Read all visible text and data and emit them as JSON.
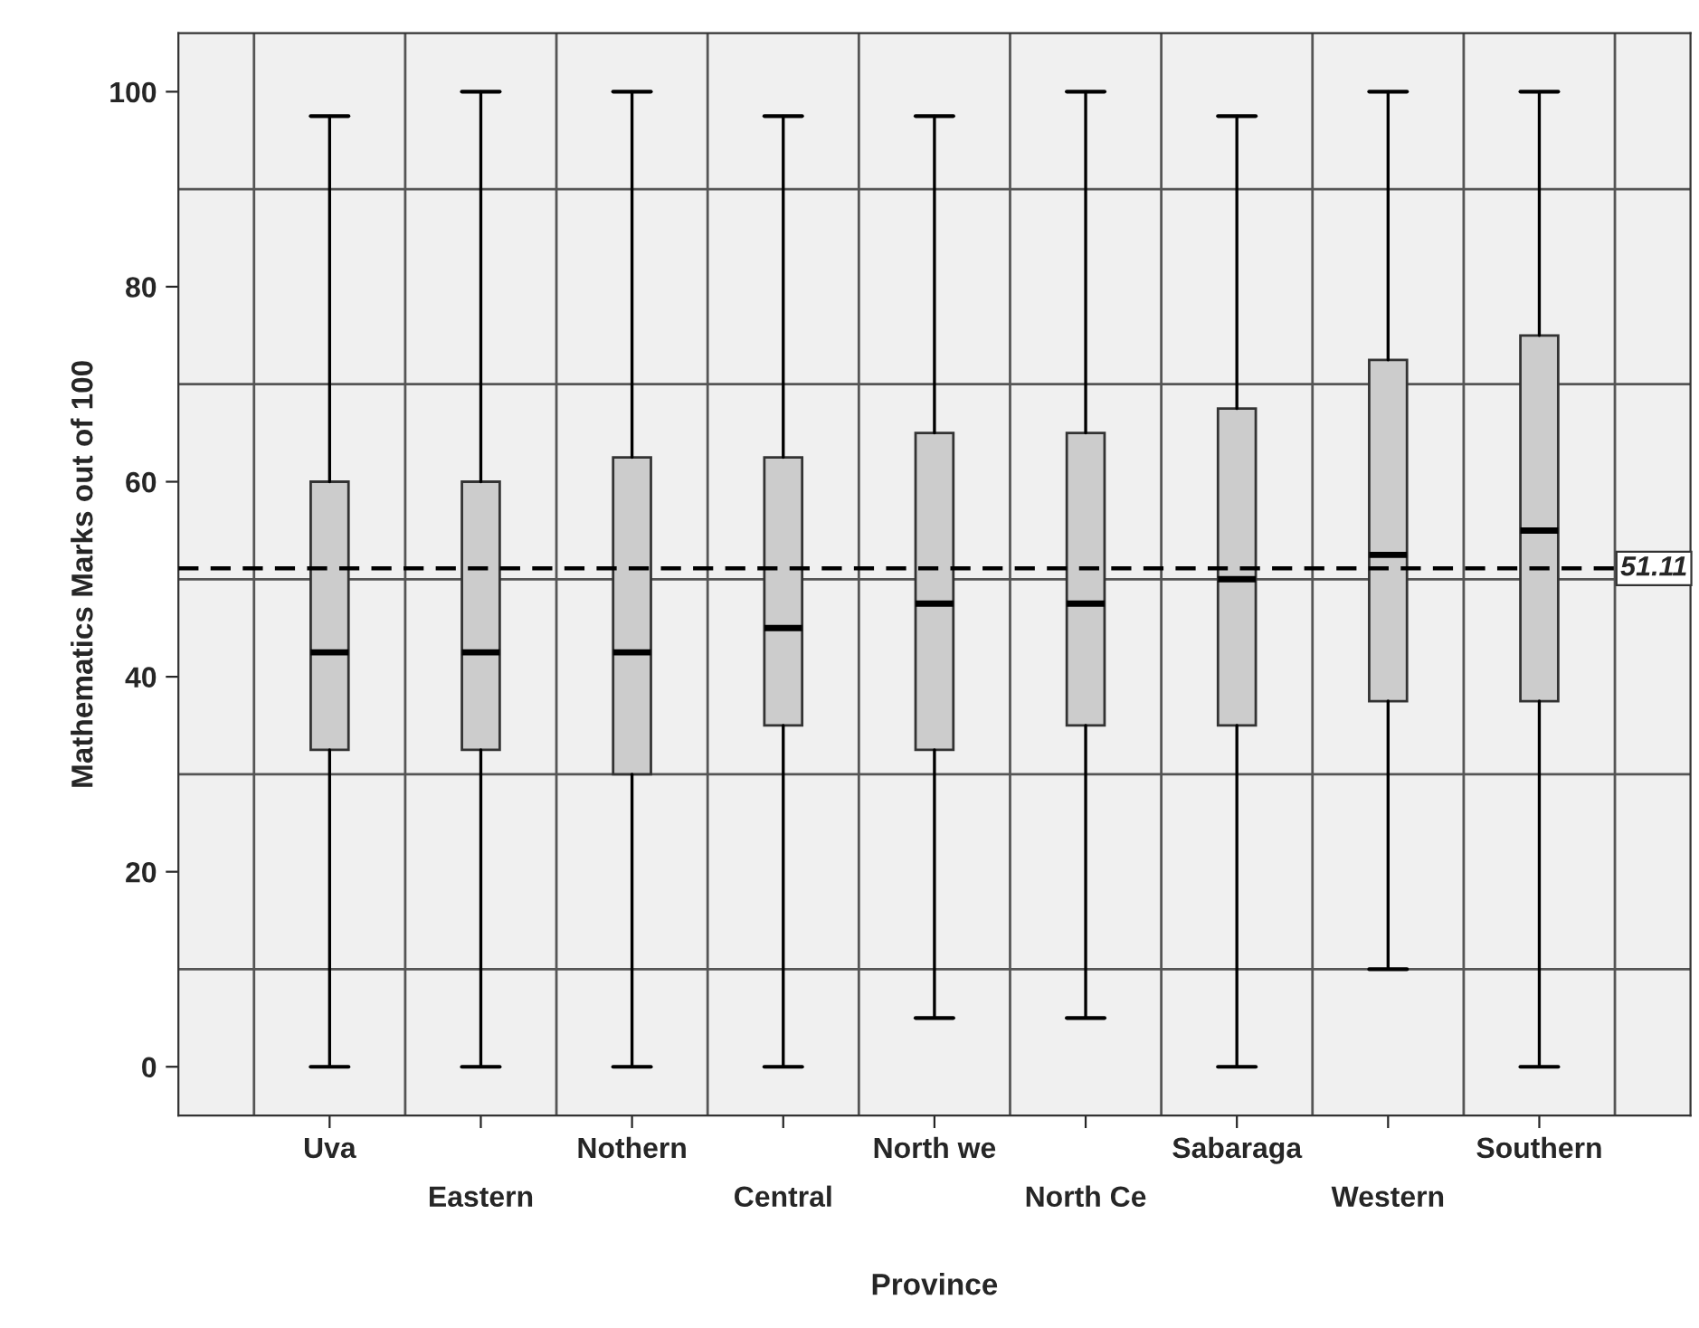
{
  "chart_data": {
    "type": "box",
    "xlabel": "Province",
    "ylabel": "Mathematics Marks out of 100",
    "categories": [
      "Uva",
      "Eastern",
      "Nothern",
      "Central",
      "North we",
      "North Ce",
      "Sabaraga",
      "Western",
      "Southern"
    ],
    "boxes": [
      {
        "low": 0,
        "q1": 32.5,
        "median": 42.5,
        "q3": 60,
        "high": 97.5
      },
      {
        "low": 0,
        "q1": 32.5,
        "median": 42.5,
        "q3": 60,
        "high": 100
      },
      {
        "low": 0,
        "q1": 30,
        "median": 42.5,
        "q3": 62.5,
        "high": 100
      },
      {
        "low": 0,
        "q1": 35,
        "median": 45,
        "q3": 62.5,
        "high": 97.5
      },
      {
        "low": 5,
        "q1": 32.5,
        "median": 47.5,
        "q3": 65,
        "high": 97.5
      },
      {
        "low": 5,
        "q1": 35,
        "median": 47.5,
        "q3": 65,
        "high": 100
      },
      {
        "low": 0,
        "q1": 35,
        "median": 50,
        "q3": 67.5,
        "high": 97.5
      },
      {
        "low": 10,
        "q1": 37.5,
        "median": 52.5,
        "q3": 72.5,
        "high": 100
      },
      {
        "low": 0,
        "q1": 37.5,
        "median": 55,
        "q3": 75,
        "high": 100
      }
    ],
    "color": "#cccccc",
    "ylim": [
      -5,
      106
    ],
    "yticks": [
      0,
      20,
      40,
      60,
      80,
      100
    ],
    "grid": true,
    "ref_lines": [
      {
        "axis": "y",
        "value": 51.11,
        "label": "51.11",
        "line_style": "dashed",
        "color": "#000000"
      }
    ]
  }
}
